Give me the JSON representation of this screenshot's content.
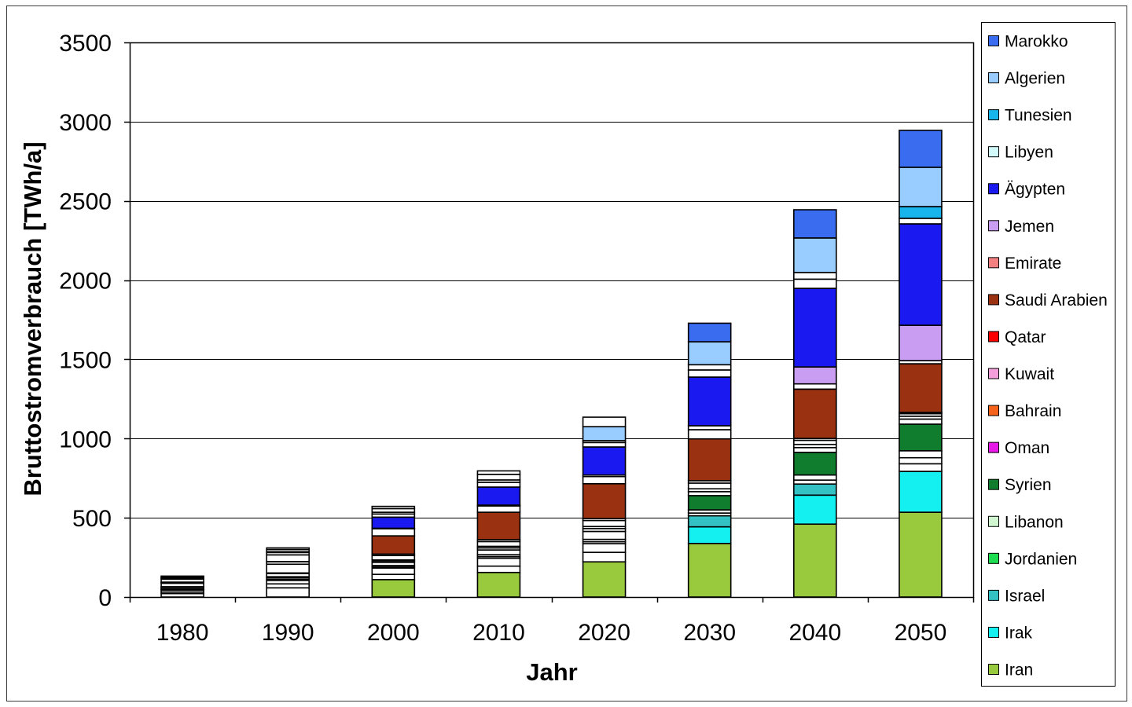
{
  "chart_data": {
    "type": "bar",
    "stacked": true,
    "xlabel": "Jahr",
    "ylabel": "Bruttostromverbrauch [TWh/a]",
    "ylim": [
      0,
      3500
    ],
    "yticks": [
      0,
      500,
      1000,
      1500,
      2000,
      2500,
      3000,
      3500
    ],
    "grid": true,
    "legend": "right",
    "categories": [
      "1980",
      "1990",
      "2000",
      "2010",
      "2020",
      "2030",
      "2040",
      "2050"
    ],
    "series": [
      {
        "name": "Iran",
        "color": "#99C93D",
        "values": [
          22,
          58,
          110,
          155,
          222,
          338,
          460,
          535
        ]
      },
      {
        "name": "Irak",
        "color": "#14F0F0",
        "values": [
          10,
          25,
          33,
          40,
          60,
          105,
          183,
          258
        ]
      },
      {
        "name": "Israel",
        "color": "#33C1C4",
        "values": [
          12,
          22,
          40,
          50,
          55,
          70,
          70,
          48
        ]
      },
      {
        "name": "Jordanien",
        "color": "#1EDC50",
        "values": [
          1,
          3,
          7,
          10,
          12,
          17,
          25,
          38
        ]
      },
      {
        "name": "Libanon",
        "color": "#D0F7D0",
        "values": [
          2,
          3,
          9,
          12,
          15,
          20,
          32,
          44
        ]
      },
      {
        "name": "Syrien",
        "color": "#107C2E",
        "values": [
          4,
          10,
          20,
          30,
          50,
          90,
          143,
          168
        ]
      },
      {
        "name": "Oman",
        "color": "#E619E6",
        "values": [
          1,
          4,
          9,
          13,
          18,
          25,
          30,
          32
        ]
      },
      {
        "name": "Bahrain",
        "color": "#F6641C",
        "values": [
          2,
          3,
          6,
          10,
          13,
          18,
          20,
          18
        ]
      },
      {
        "name": "Kuwait",
        "color": "#F59FDA",
        "values": [
          9,
          20,
          28,
          30,
          38,
          36,
          26,
          16
        ]
      },
      {
        "name": "Qatar",
        "color": "#FF0000",
        "values": [
          2,
          4,
          9,
          12,
          12,
          15,
          12,
          8
        ]
      },
      {
        "name": "Saudi Arabien",
        "color": "#9A3212",
        "values": [
          22,
          55,
          115,
          173,
          220,
          264,
          311,
          307
        ]
      },
      {
        "name": "Emirate",
        "color": "#F28080",
        "values": [
          6,
          15,
          45,
          40,
          45,
          58,
          33,
          20
        ]
      },
      {
        "name": "Jemen",
        "color": "#C99DF2",
        "values": [
          1,
          2,
          3,
          5,
          10,
          25,
          107,
          223
        ]
      },
      {
        "name": "Ägypten",
        "color": "#1A1AF0",
        "values": [
          19,
          42,
          70,
          114,
          177,
          307,
          496,
          640
        ]
      },
      {
        "name": "Libyen",
        "color": "#D2FAFA",
        "values": [
          4,
          15,
          20,
          30,
          28,
          45,
          58,
          35
        ]
      },
      {
        "name": "Tunesien",
        "color": "#18B4EC",
        "values": [
          3,
          5,
          11,
          15,
          12,
          33,
          42,
          74
        ]
      },
      {
        "name": "Algerien",
        "color": "#99CCFF",
        "values": [
          7,
          14,
          23,
          35,
          88,
          145,
          218,
          248
        ]
      },
      {
        "name": "Marokko",
        "color": "#3A6CF0",
        "values": [
          5,
          10,
          14,
          22,
          60,
          117,
          178,
          233
        ]
      }
    ]
  }
}
